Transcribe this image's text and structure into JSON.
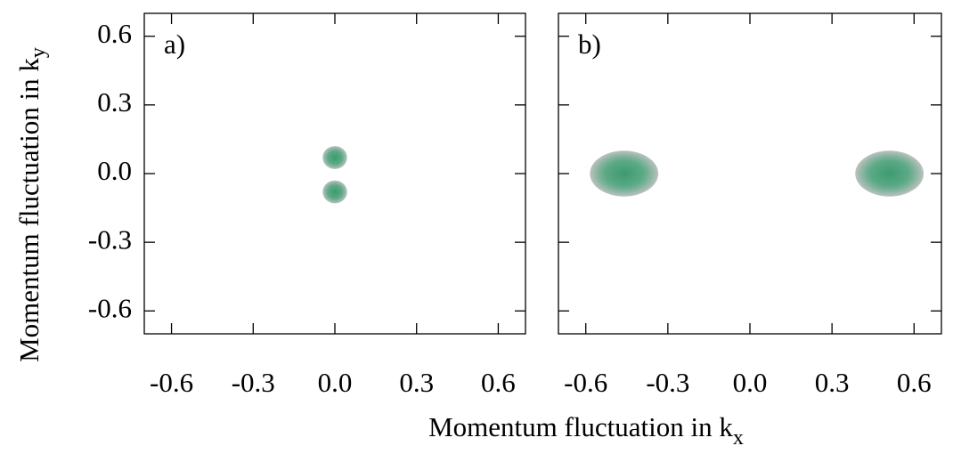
{
  "chart_data": [
    {
      "type": "density",
      "panel_label": "a)",
      "y_label": {
        "text": "Momentum fluctuation in k",
        "subscript": "y"
      },
      "xlim": [
        -0.7,
        0.7
      ],
      "ylim": [
        -0.7,
        0.7
      ],
      "xticks": [
        -0.6,
        -0.3,
        {
          "value": 0,
          "label": "0.0"
        },
        0.3,
        0.6
      ],
      "yticks": [
        0.6,
        0.3,
        {
          "value": 0,
          "label": "0.0"
        },
        -0.3,
        -0.6
      ],
      "color": "#3d9a70",
      "edge_color": "#bcc2bf",
      "blobs": [
        {
          "x": 0.0,
          "y": 0.07,
          "rx": 0.045,
          "ry": 0.05
        },
        {
          "x": 0.0,
          "y": -0.08,
          "rx": 0.045,
          "ry": 0.05
        }
      ]
    },
    {
      "type": "density",
      "panel_label": "b)",
      "xlim": [
        -0.7,
        0.7
      ],
      "ylim": [
        -0.7,
        0.7
      ],
      "xticks": [
        -0.6,
        -0.3,
        {
          "value": 0,
          "label": "0.0"
        },
        0.3,
        0.6
      ],
      "yticks": [
        0.6,
        0.3,
        {
          "value": 0,
          "label": "0.0"
        },
        -0.3,
        -0.6
      ],
      "color": "#3d9a70",
      "edge_color": "#bcc2bf",
      "blobs": [
        {
          "x": -0.46,
          "y": 0.0,
          "rx": 0.125,
          "ry": 0.1
        },
        {
          "x": 0.51,
          "y": 0.0,
          "rx": 0.125,
          "ry": 0.1
        }
      ]
    }
  ],
  "x_label": {
    "text": "Momentum fluctuation in k",
    "subscript": "x"
  }
}
